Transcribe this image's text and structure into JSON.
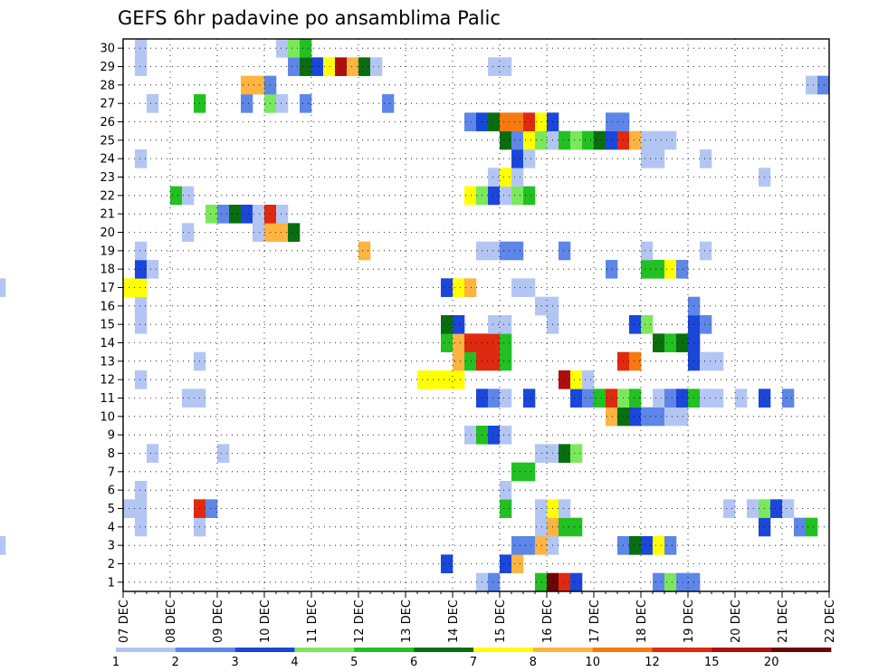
{
  "chart_data": {
    "type": "heatmap",
    "title": "GEFS 6hr padavine po ansamblima Palic",
    "xlabel": "",
    "ylabel": "",
    "x_ticks": [
      "07 DEC",
      "08 DEC",
      "09 DEC",
      "10 DEC",
      "11 DEC",
      "12 DEC",
      "13 DEC",
      "14 DEC",
      "15 DEC",
      "16 DEC",
      "17 DEC",
      "18 DEC",
      "19 DEC",
      "20 DEC",
      "21 DEC",
      "22 DEC"
    ],
    "y_ticks": [
      "1",
      "2",
      "3",
      "4",
      "5",
      "6",
      "7",
      "8",
      "9",
      "10",
      "11",
      "12",
      "13",
      "14",
      "15",
      "16",
      "17",
      "18",
      "19",
      "20",
      "21",
      "22",
      "23",
      "24",
      "25",
      "26",
      "27",
      "28",
      "29",
      "30"
    ],
    "time_steps_per_day": 4,
    "n_time_steps": 60,
    "n_members": 30,
    "levels": [
      1,
      2,
      3,
      4,
      5,
      6,
      7,
      8,
      10,
      12,
      15,
      20
    ],
    "level_labels": [
      "1",
      "2",
      "3",
      "4",
      "5",
      "6",
      "7",
      "8",
      "10",
      "12",
      "15",
      "20"
    ],
    "colors": [
      "#b3c6f3",
      "#5e86e8",
      "#1a47d9",
      "#7be85c",
      "#22c022",
      "#0a6e10",
      "#ffff00",
      "#fdb440",
      "#f57a10",
      "#e02a10",
      "#b00e0e",
      "#6a0606"
    ],
    "grid": true,
    "cells": [
      [
        1,
        43,
        0
      ],
      [
        1,
        44,
        1
      ],
      [
        1,
        48,
        4
      ],
      [
        1,
        49,
        11
      ],
      [
        1,
        50,
        9
      ],
      [
        1,
        51,
        2
      ],
      [
        1,
        58,
        1
      ],
      [
        1,
        59,
        3
      ],
      [
        1,
        60,
        1
      ],
      [
        1,
        61,
        1
      ],
      [
        2,
        40,
        2
      ],
      [
        2,
        45,
        2
      ],
      [
        2,
        46,
        7
      ],
      [
        3,
        2,
        0
      ],
      [
        3,
        46,
        1
      ],
      [
        3,
        47,
        1
      ],
      [
        3,
        48,
        7
      ],
      [
        3,
        49,
        0
      ],
      [
        3,
        55,
        1
      ],
      [
        3,
        56,
        5
      ],
      [
        3,
        57,
        2
      ],
      [
        3,
        58,
        6
      ],
      [
        3,
        59,
        1
      ],
      [
        4,
        14,
        0
      ],
      [
        4,
        19,
        0
      ],
      [
        4,
        48,
        0
      ],
      [
        4,
        49,
        7
      ],
      [
        4,
        50,
        4
      ],
      [
        4,
        51,
        4
      ],
      [
        4,
        67,
        2
      ],
      [
        4,
        70,
        1
      ],
      [
        4,
        71,
        4
      ],
      [
        5,
        13,
        0
      ],
      [
        5,
        14,
        0
      ],
      [
        5,
        19,
        9
      ],
      [
        5,
        20,
        1
      ],
      [
        5,
        45,
        4
      ],
      [
        5,
        48,
        0
      ],
      [
        5,
        49,
        6
      ],
      [
        5,
        50,
        0
      ],
      [
        5,
        64,
        0
      ],
      [
        5,
        66,
        0
      ],
      [
        5,
        67,
        3
      ],
      [
        5,
        68,
        2
      ],
      [
        5,
        69,
        0
      ],
      [
        6,
        14,
        0
      ],
      [
        6,
        45,
        0
      ],
      [
        7,
        46,
        4
      ],
      [
        7,
        47,
        4
      ],
      [
        8,
        15,
        0
      ],
      [
        8,
        21,
        0
      ],
      [
        8,
        48,
        0
      ],
      [
        8,
        49,
        0
      ],
      [
        8,
        50,
        5
      ],
      [
        8,
        51,
        3
      ],
      [
        9,
        42,
        0
      ],
      [
        9,
        43,
        4
      ],
      [
        9,
        44,
        2
      ],
      [
        9,
        45,
        0
      ],
      [
        10,
        54,
        7
      ],
      [
        10,
        55,
        5
      ],
      [
        10,
        56,
        2
      ],
      [
        10,
        57,
        1
      ],
      [
        10,
        58,
        1
      ],
      [
        10,
        59,
        0
      ],
      [
        10,
        60,
        0
      ],
      [
        11,
        18,
        0
      ],
      [
        11,
        19,
        0
      ],
      [
        11,
        43,
        2
      ],
      [
        11,
        44,
        1
      ],
      [
        11,
        45,
        0
      ],
      [
        11,
        47,
        2
      ],
      [
        11,
        51,
        2
      ],
      [
        11,
        52,
        1
      ],
      [
        11,
        53,
        4
      ],
      [
        11,
        54,
        9
      ],
      [
        11,
        55,
        3
      ],
      [
        11,
        56,
        4
      ],
      [
        11,
        58,
        0
      ],
      [
        11,
        59,
        1
      ],
      [
        11,
        60,
        2
      ],
      [
        11,
        61,
        4
      ],
      [
        11,
        62,
        0
      ],
      [
        11,
        63,
        0
      ],
      [
        11,
        65,
        0
      ],
      [
        11,
        67,
        2
      ],
      [
        11,
        69,
        1
      ],
      [
        12,
        14,
        0
      ],
      [
        12,
        38,
        6
      ],
      [
        12,
        39,
        6
      ],
      [
        12,
        40,
        6
      ],
      [
        12,
        41,
        6
      ],
      [
        12,
        50,
        10
      ],
      [
        12,
        51,
        6
      ],
      [
        12,
        52,
        0
      ],
      [
        13,
        19,
        0
      ],
      [
        13,
        41,
        7
      ],
      [
        13,
        42,
        4
      ],
      [
        13,
        43,
        9
      ],
      [
        13,
        44,
        9
      ],
      [
        13,
        45,
        4
      ],
      [
        13,
        55,
        9
      ],
      [
        13,
        56,
        8
      ],
      [
        13,
        61,
        2
      ],
      [
        13,
        62,
        0
      ],
      [
        13,
        63,
        0
      ],
      [
        14,
        40,
        4
      ],
      [
        14,
        41,
        7
      ],
      [
        14,
        42,
        9
      ],
      [
        14,
        43,
        9
      ],
      [
        14,
        44,
        9
      ],
      [
        14,
        45,
        4
      ],
      [
        14,
        58,
        5
      ],
      [
        14,
        59,
        4
      ],
      [
        14,
        60,
        5
      ],
      [
        14,
        61,
        2
      ],
      [
        15,
        14,
        0
      ],
      [
        15,
        40,
        5
      ],
      [
        15,
        41,
        2
      ],
      [
        15,
        44,
        0
      ],
      [
        15,
        45,
        0
      ],
      [
        15,
        49,
        0
      ],
      [
        15,
        56,
        2
      ],
      [
        15,
        57,
        3
      ],
      [
        15,
        61,
        2
      ],
      [
        15,
        62,
        1
      ],
      [
        16,
        1,
        0
      ],
      [
        16,
        14,
        0
      ],
      [
        16,
        48,
        0
      ],
      [
        16,
        49,
        0
      ],
      [
        16,
        61,
        1
      ],
      [
        17,
        2,
        0
      ],
      [
        17,
        13,
        6
      ],
      [
        17,
        14,
        6
      ],
      [
        17,
        40,
        2
      ],
      [
        17,
        41,
        6
      ],
      [
        17,
        42,
        7
      ],
      [
        17,
        46,
        0
      ],
      [
        17,
        47,
        0
      ],
      [
        18,
        14,
        2
      ],
      [
        18,
        15,
        0
      ],
      [
        18,
        54,
        1
      ],
      [
        18,
        57,
        4
      ],
      [
        18,
        58,
        4
      ],
      [
        18,
        59,
        6
      ],
      [
        18,
        60,
        1
      ],
      [
        19,
        14,
        0
      ],
      [
        19,
        33,
        7
      ],
      [
        19,
        43,
        0
      ],
      [
        19,
        44,
        0
      ],
      [
        19,
        45,
        1
      ],
      [
        19,
        46,
        1
      ],
      [
        19,
        50,
        1
      ],
      [
        19,
        57,
        0
      ],
      [
        19,
        62,
        0
      ],
      [
        20,
        18,
        0
      ],
      [
        20,
        24,
        0
      ],
      [
        20,
        25,
        7
      ],
      [
        20,
        26,
        7
      ],
      [
        20,
        27,
        5
      ],
      [
        21,
        20,
        3
      ],
      [
        21,
        21,
        1
      ],
      [
        21,
        22,
        5
      ],
      [
        21,
        23,
        2
      ],
      [
        21,
        24,
        0
      ],
      [
        21,
        25,
        9
      ],
      [
        21,
        26,
        0
      ],
      [
        22,
        17,
        4
      ],
      [
        22,
        18,
        0
      ],
      [
        22,
        42,
        6
      ],
      [
        22,
        43,
        3
      ],
      [
        22,
        44,
        2
      ],
      [
        22,
        45,
        0
      ],
      [
        22,
        46,
        3
      ],
      [
        22,
        47,
        4
      ],
      [
        23,
        44,
        0
      ],
      [
        23,
        45,
        6
      ],
      [
        23,
        46,
        0
      ],
      [
        23,
        67,
        0
      ],
      [
        24,
        14,
        0
      ],
      [
        24,
        46,
        2
      ],
      [
        24,
        47,
        0
      ],
      [
        24,
        57,
        0
      ],
      [
        24,
        58,
        0
      ],
      [
        24,
        62,
        0
      ],
      [
        25,
        45,
        5
      ],
      [
        25,
        46,
        1
      ],
      [
        25,
        47,
        6
      ],
      [
        25,
        48,
        3
      ],
      [
        25,
        49,
        0
      ],
      [
        25,
        50,
        4
      ],
      [
        25,
        51,
        3
      ],
      [
        25,
        52,
        4
      ],
      [
        25,
        53,
        5
      ],
      [
        25,
        54,
        2
      ],
      [
        25,
        55,
        9
      ],
      [
        25,
        56,
        7
      ],
      [
        25,
        57,
        0
      ],
      [
        25,
        58,
        0
      ],
      [
        25,
        59,
        0
      ],
      [
        26,
        42,
        1
      ],
      [
        26,
        43,
        2
      ],
      [
        26,
        44,
        5
      ],
      [
        26,
        45,
        8
      ],
      [
        26,
        46,
        8
      ],
      [
        26,
        47,
        9
      ],
      [
        26,
        48,
        6
      ],
      [
        26,
        49,
        2
      ],
      [
        26,
        54,
        1
      ],
      [
        26,
        55,
        1
      ],
      [
        27,
        15,
        0
      ],
      [
        27,
        19,
        4
      ],
      [
        27,
        23,
        1
      ],
      [
        27,
        25,
        3
      ],
      [
        27,
        26,
        0
      ],
      [
        27,
        28,
        1
      ],
      [
        27,
        35,
        1
      ],
      [
        28,
        23,
        7
      ],
      [
        28,
        24,
        7
      ],
      [
        28,
        25,
        1
      ],
      [
        28,
        71,
        0
      ],
      [
        28,
        72,
        1
      ],
      [
        29,
        14,
        0
      ],
      [
        29,
        27,
        1
      ],
      [
        29,
        28,
        5
      ],
      [
        29,
        29,
        2
      ],
      [
        29,
        30,
        6
      ],
      [
        29,
        31,
        10
      ],
      [
        29,
        32,
        7
      ],
      [
        29,
        33,
        5
      ],
      [
        29,
        34,
        0
      ],
      [
        29,
        44,
        0
      ],
      [
        29,
        45,
        0
      ],
      [
        30,
        14,
        0
      ],
      [
        30,
        26,
        0
      ],
      [
        30,
        27,
        3
      ],
      [
        30,
        28,
        4
      ]
    ]
  }
}
